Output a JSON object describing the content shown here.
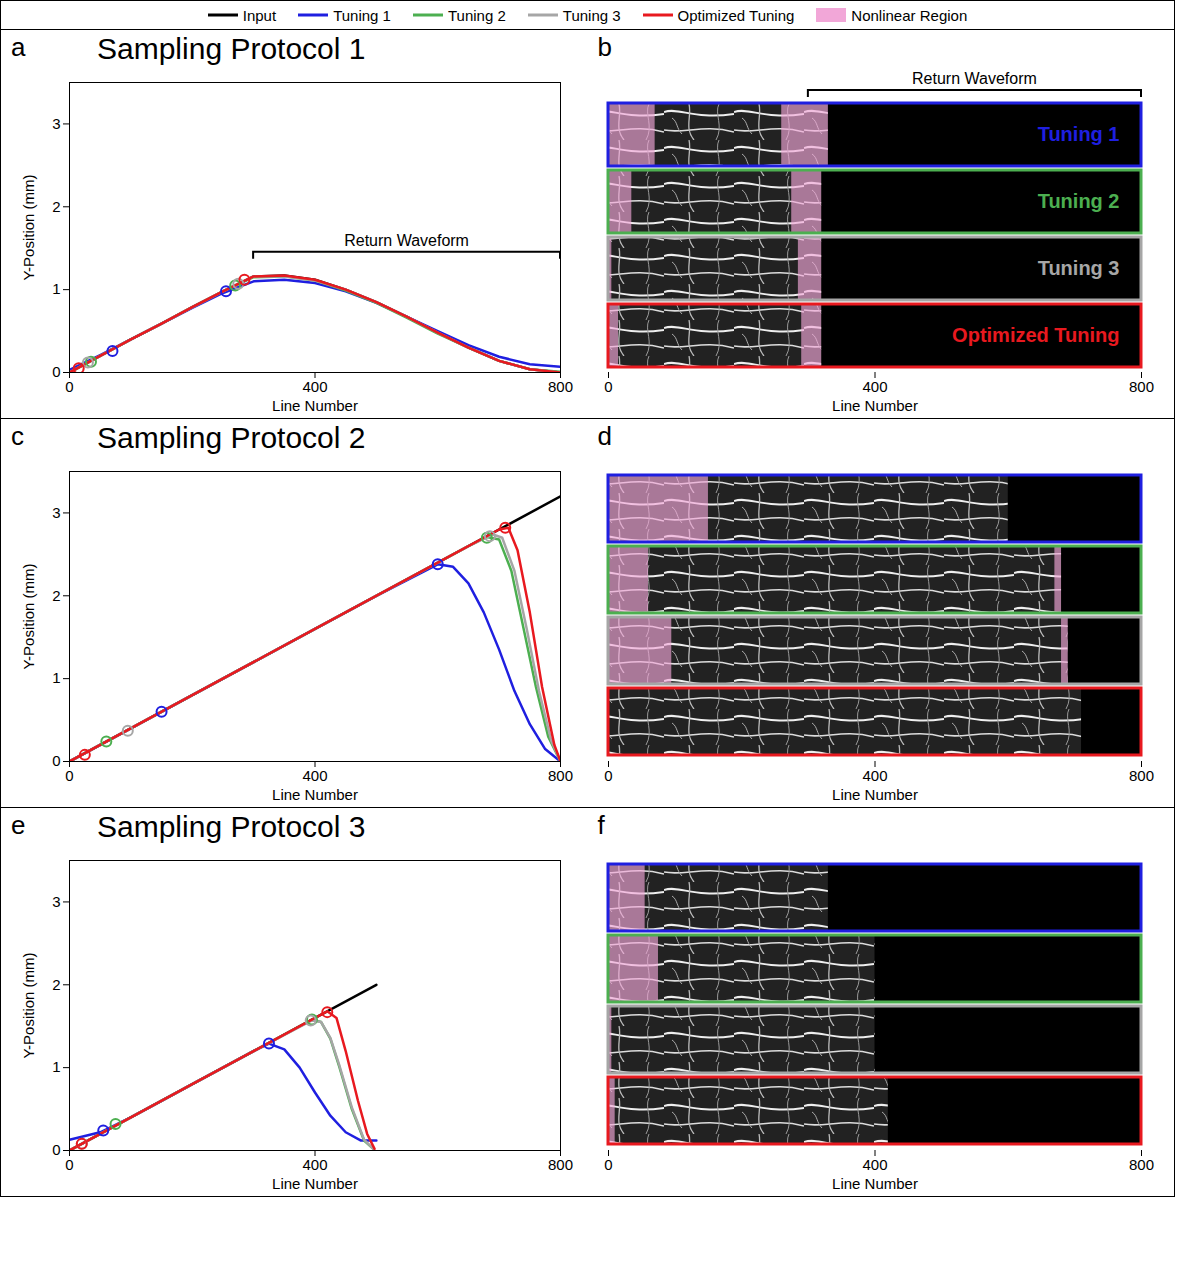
{
  "chart_data": [
    {
      "panel": "a",
      "type": "line",
      "title": "Sampling Protocol 1",
      "xlabel": "Line Number",
      "ylabel": "Y-Position (mm)",
      "xlim": [
        0,
        800
      ],
      "ylim": [
        0,
        3.5
      ],
      "xticks": [
        0,
        400,
        800
      ],
      "yticks": [
        0,
        1,
        2,
        3
      ],
      "legend": "top",
      "annotation": {
        "text": "Return Waveform",
        "x1": 300,
        "x2": 800,
        "y": 1.45
      },
      "series": [
        {
          "name": "Input",
          "color": "#000000",
          "line_style": "solid",
          "x": [
            0,
            50,
            100,
            150,
            200,
            250,
            300,
            350,
            400,
            450,
            500,
            550,
            600,
            650,
            700,
            750,
            800
          ],
          "values": [
            0,
            0.2,
            0.4,
            0.59,
            0.79,
            0.98,
            1.16,
            1.17,
            1.12,
            1.0,
            0.85,
            0.67,
            0.48,
            0.3,
            0.14,
            0.04,
            0
          ]
        },
        {
          "name": "Tuning 1",
          "color": "#1f1fe0",
          "line_style": "solid",
          "marker": "circle",
          "marked_x": [
            70,
            255
          ],
          "marked_y": [
            0.26,
            0.98
          ],
          "x": [
            0,
            50,
            100,
            150,
            200,
            250,
            300,
            350,
            400,
            450,
            500,
            550,
            600,
            650,
            700,
            750,
            800
          ],
          "values": [
            0.03,
            0.21,
            0.4,
            0.59,
            0.78,
            0.96,
            1.1,
            1.12,
            1.08,
            0.98,
            0.84,
            0.67,
            0.5,
            0.33,
            0.19,
            0.1,
            0.07
          ]
        },
        {
          "name": "Tuning 2",
          "color": "#4caf50",
          "line_style": "solid",
          "marker": "circle",
          "marked_x": [
            35,
            270
          ],
          "marked_y": [
            0.13,
            1.05
          ],
          "x": [
            0,
            50,
            100,
            150,
            200,
            250,
            300,
            350,
            400,
            450,
            500,
            550,
            600,
            650,
            700,
            750,
            800
          ],
          "values": [
            0,
            0.2,
            0.4,
            0.59,
            0.79,
            0.98,
            1.15,
            1.16,
            1.11,
            0.99,
            0.84,
            0.66,
            0.47,
            0.3,
            0.14,
            0.04,
            0.01
          ]
        },
        {
          "name": "Tuning 3",
          "color": "#a6a6a6",
          "line_style": "solid",
          "marker": "circle",
          "marked_x": [
            30,
            275
          ],
          "marked_y": [
            0.12,
            1.07
          ],
          "x": [
            0,
            50,
            100,
            150,
            200,
            250,
            300,
            350,
            400,
            450,
            500,
            550,
            600,
            650,
            700,
            750,
            800
          ],
          "values": [
            0,
            0.2,
            0.4,
            0.59,
            0.79,
            0.98,
            1.16,
            1.16,
            1.11,
            1.0,
            0.85,
            0.67,
            0.48,
            0.3,
            0.14,
            0.04,
            0
          ]
        },
        {
          "name": "Optimized Tuning",
          "color": "#e8191f",
          "line_style": "solid",
          "marker": "circle",
          "marked_x": [
            15,
            285
          ],
          "marked_y": [
            0.05,
            1.12
          ],
          "x": [
            0,
            50,
            100,
            150,
            200,
            250,
            300,
            350,
            400,
            450,
            500,
            550,
            600,
            650,
            700,
            750,
            800
          ],
          "values": [
            0,
            0.2,
            0.4,
            0.59,
            0.79,
            0.98,
            1.16,
            1.17,
            1.12,
            1.0,
            0.85,
            0.67,
            0.48,
            0.3,
            0.14,
            0.04,
            0
          ]
        }
      ]
    },
    {
      "panel": "b",
      "type": "strips",
      "xlabel": "Line Number",
      "xlim": [
        0,
        800
      ],
      "xticks": [
        0,
        400,
        800
      ],
      "data_labels": true,
      "annotation": {
        "text": "Return Waveform",
        "x1": 300,
        "x2": 800
      },
      "region": {
        "name": "Nonlinear Region",
        "color": "#f2a7d8"
      },
      "strips": [
        {
          "name": "Tuning 1",
          "color": "#1f1fe0",
          "image_end": 330,
          "nonlinear": [
            [
              0,
              70
            ],
            [
              260,
              330
            ]
          ]
        },
        {
          "name": "Tuning 2",
          "color": "#4caf50",
          "image_end": 320,
          "nonlinear": [
            [
              0,
              35
            ],
            [
              275,
              320
            ]
          ]
        },
        {
          "name": "Tuning 3",
          "color": "#a6a6a6",
          "image_end": 320,
          "nonlinear": [
            [
              0,
              5
            ],
            [
              285,
              320
            ]
          ]
        },
        {
          "name": "Optimized Tuning",
          "color": "#e8191f",
          "image_end": 320,
          "nonlinear": [
            [
              0,
              15
            ],
            [
              290,
              320
            ]
          ]
        }
      ]
    },
    {
      "panel": "c",
      "type": "line",
      "title": "Sampling Protocol 2",
      "xlabel": "Line Number",
      "ylabel": "Y-Position (mm)",
      "xlim": [
        0,
        800
      ],
      "ylim": [
        0,
        3.5
      ],
      "xticks": [
        0,
        400,
        800
      ],
      "yticks": [
        0,
        1,
        2,
        3
      ],
      "series": [
        {
          "name": "Input",
          "color": "#000000",
          "line_style": "solid",
          "x": [
            0,
            800
          ],
          "values": [
            0,
            3.2
          ]
        },
        {
          "name": "Tuning 1",
          "color": "#1f1fe0",
          "line_style": "solid",
          "marker": "circle",
          "marked_x": [
            150,
            600
          ],
          "marked_y": [
            0.6,
            2.38
          ],
          "x": [
            0,
            100,
            200,
            300,
            400,
            500,
            600,
            625,
            650,
            675,
            700,
            725,
            750,
            775,
            800
          ],
          "values": [
            0,
            0.4,
            0.8,
            1.2,
            1.6,
            2.0,
            2.38,
            2.35,
            2.15,
            1.8,
            1.35,
            0.85,
            0.45,
            0.15,
            0
          ]
        },
        {
          "name": "Tuning 2",
          "color": "#4caf50",
          "line_style": "solid",
          "marker": "circle",
          "marked_x": [
            60,
            680
          ],
          "marked_y": [
            0.24,
            2.7
          ],
          "x": [
            0,
            200,
            400,
            600,
            650,
            680,
            700,
            720,
            740,
            760,
            780,
            800
          ],
          "values": [
            0,
            0.8,
            1.6,
            2.4,
            2.6,
            2.71,
            2.68,
            2.3,
            1.6,
            0.9,
            0.3,
            0
          ]
        },
        {
          "name": "Tuning 3",
          "color": "#a6a6a6",
          "line_style": "solid",
          "marker": "circle",
          "marked_x": [
            95,
            685
          ],
          "marked_y": [
            0.37,
            2.72
          ],
          "x": [
            0,
            200,
            400,
            600,
            650,
            690,
            705,
            725,
            745,
            765,
            785,
            800
          ],
          "values": [
            0,
            0.8,
            1.6,
            2.4,
            2.6,
            2.74,
            2.7,
            2.3,
            1.6,
            0.85,
            0.25,
            0
          ]
        },
        {
          "name": "Optimized Tuning",
          "color": "#e8191f",
          "line_style": "solid",
          "marker": "circle",
          "marked_x": [
            25,
            710
          ],
          "marked_y": [
            0.08,
            2.82
          ],
          "x": [
            0,
            200,
            400,
            600,
            700,
            715,
            730,
            750,
            770,
            790,
            800
          ],
          "values": [
            0,
            0.8,
            1.6,
            2.4,
            2.8,
            2.82,
            2.55,
            1.8,
            0.9,
            0.2,
            0
          ]
        }
      ]
    },
    {
      "panel": "d",
      "type": "strips",
      "xlabel": "Line Number",
      "xlim": [
        0,
        800
      ],
      "xticks": [
        0,
        400,
        800
      ],
      "data_labels": false,
      "region": {
        "name": "Nonlinear Region",
        "color": "#f2a7d8"
      },
      "strips": [
        {
          "name": "Tuning 1",
          "color": "#1f1fe0",
          "image_end": 600,
          "nonlinear": [
            [
              0,
              150
            ]
          ]
        },
        {
          "name": "Tuning 2",
          "color": "#4caf50",
          "image_end": 680,
          "nonlinear": [
            [
              0,
              60
            ],
            [
              670,
              680
            ]
          ]
        },
        {
          "name": "Tuning 3",
          "color": "#a6a6a6",
          "image_end": 690,
          "nonlinear": [
            [
              0,
              95
            ],
            [
              680,
              690
            ]
          ]
        },
        {
          "name": "Optimized Tuning",
          "color": "#e8191f",
          "image_end": 710,
          "nonlinear": []
        }
      ]
    },
    {
      "panel": "e",
      "type": "line",
      "title": "Sampling Protocol 3",
      "xlabel": "Line Number",
      "ylabel": "Y-Position (mm)",
      "xlim": [
        0,
        800
      ],
      "ylim": [
        0,
        3.5
      ],
      "xticks": [
        0,
        400,
        800
      ],
      "yticks": [
        0,
        1,
        2,
        3
      ],
      "series": [
        {
          "name": "Input",
          "color": "#000000",
          "line_style": "solid",
          "x": [
            0,
            500
          ],
          "values": [
            0,
            2.0
          ]
        },
        {
          "name": "Tuning 1",
          "color": "#1f1fe0",
          "line_style": "solid",
          "marker": "circle",
          "marked_x": [
            55,
            325
          ],
          "marked_y": [
            0.24,
            1.29
          ],
          "x": [
            0,
            50,
            100,
            150,
            200,
            250,
            300,
            325,
            350,
            375,
            400,
            425,
            450,
            475,
            500
          ],
          "values": [
            0.13,
            0.22,
            0.4,
            0.6,
            0.8,
            1.0,
            1.2,
            1.29,
            1.22,
            1.0,
            0.7,
            0.42,
            0.22,
            0.12,
            0.12
          ]
        },
        {
          "name": "Tuning 2",
          "color": "#4caf50",
          "line_style": "solid",
          "marker": "circle",
          "marked_x": [
            75,
            395
          ],
          "marked_y": [
            0.32,
            1.58
          ],
          "x": [
            0,
            100,
            200,
            300,
            395,
            410,
            425,
            440,
            460,
            480,
            495
          ],
          "values": [
            0,
            0.4,
            0.8,
            1.2,
            1.58,
            1.55,
            1.35,
            1.0,
            0.5,
            0.12,
            0.02
          ]
        },
        {
          "name": "Tuning 3",
          "color": "#a6a6a6",
          "line_style": "solid",
          "marker": "circle",
          "marked_x": [
            20,
            393
          ],
          "marked_y": [
            0.08,
            1.57
          ],
          "x": [
            0,
            100,
            200,
            300,
            395,
            410,
            425,
            440,
            460,
            480,
            495
          ],
          "values": [
            0,
            0.4,
            0.8,
            1.2,
            1.57,
            1.55,
            1.36,
            1.02,
            0.52,
            0.13,
            0.02
          ]
        },
        {
          "name": "Optimized Tuning",
          "color": "#e8191f",
          "line_style": "solid",
          "marker": "circle",
          "marked_x": [
            20,
            420
          ],
          "marked_y": [
            0.08,
            1.67
          ],
          "x": [
            0,
            100,
            200,
            300,
            420,
            435,
            450,
            470,
            485,
            497
          ],
          "values": [
            0,
            0.4,
            0.8,
            1.2,
            1.68,
            1.6,
            1.2,
            0.6,
            0.2,
            0.02
          ]
        }
      ]
    },
    {
      "panel": "f",
      "type": "strips",
      "xlabel": "Line Number",
      "xlim": [
        0,
        800
      ],
      "xticks": [
        0,
        400,
        800
      ],
      "data_labels": false,
      "region": {
        "name": "Nonlinear Region",
        "color": "#f2a7d8"
      },
      "strips": [
        {
          "name": "Tuning 1",
          "color": "#1f1fe0",
          "image_end": 330,
          "nonlinear": [
            [
              0,
              55
            ]
          ]
        },
        {
          "name": "Tuning 2",
          "color": "#4caf50",
          "image_end": 400,
          "nonlinear": [
            [
              0,
              75
            ]
          ]
        },
        {
          "name": "Tuning 3",
          "color": "#a6a6a6",
          "image_end": 400,
          "nonlinear": [
            [
              0,
              5
            ]
          ]
        },
        {
          "name": "Optimized Tuning",
          "color": "#e8191f",
          "image_end": 420,
          "nonlinear": [
            [
              0,
              10
            ]
          ]
        }
      ]
    }
  ]
}
